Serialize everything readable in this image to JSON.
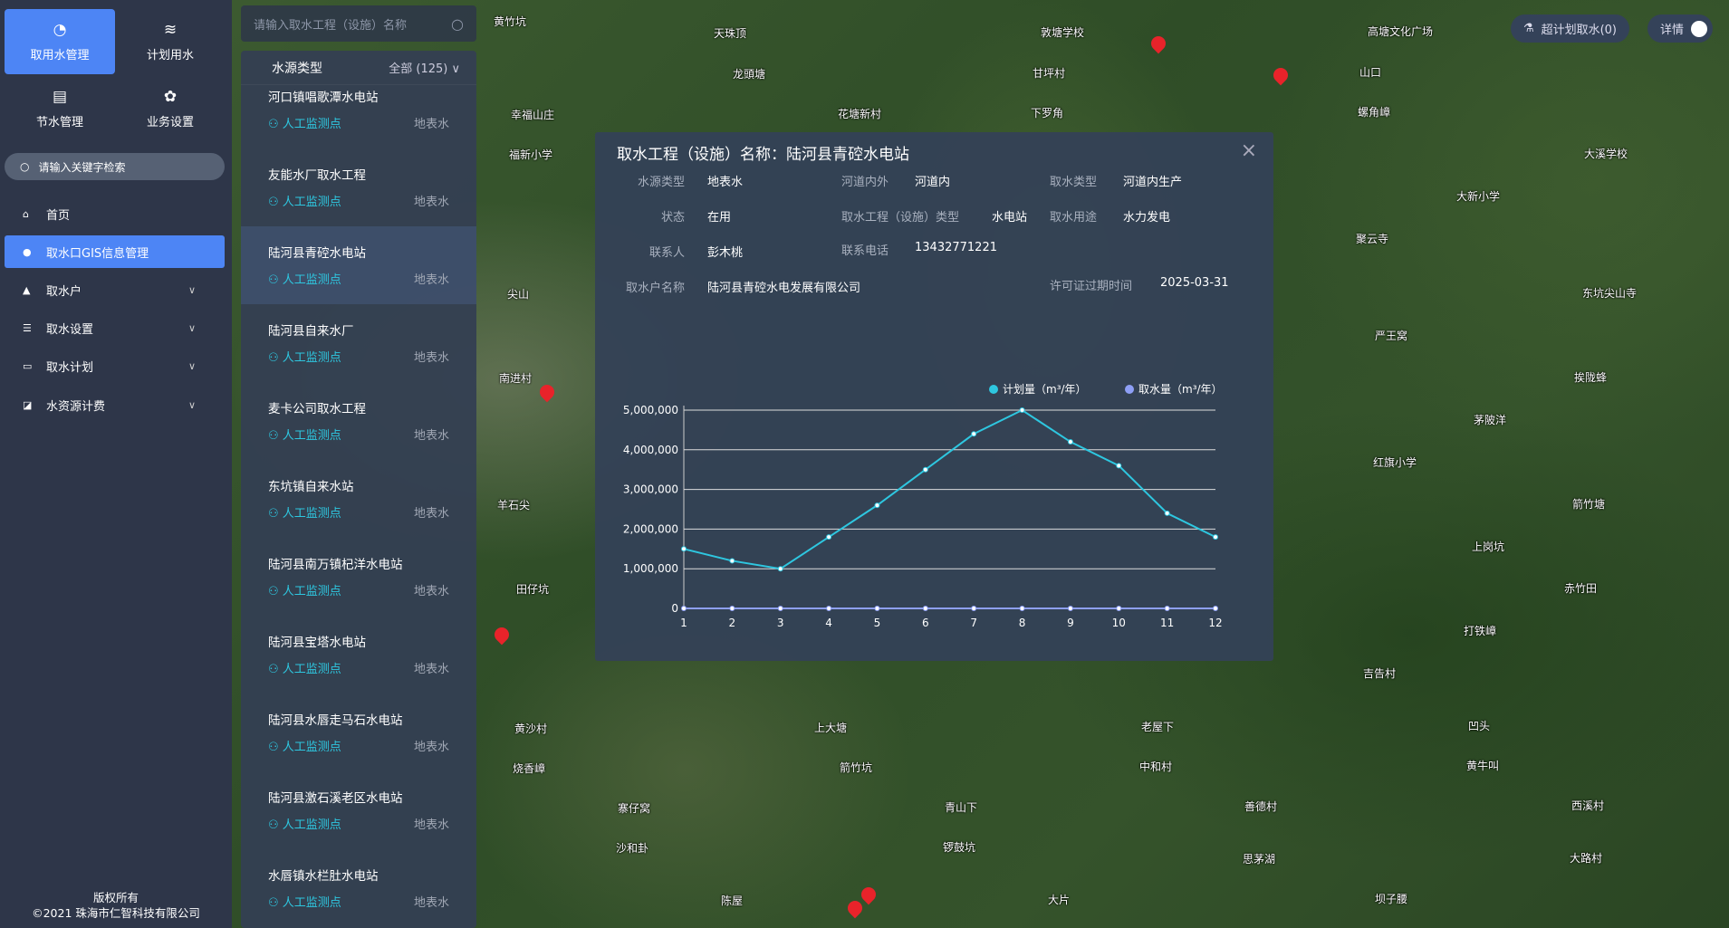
{
  "sidebar": {
    "tiles": [
      {
        "label": "取用水管理",
        "icon": "gauge-icon"
      },
      {
        "label": "计划用水",
        "icon": "waves-icon"
      },
      {
        "label": "节水管理",
        "icon": "document-icon"
      },
      {
        "label": "业务设置",
        "icon": "gear-icon"
      }
    ],
    "search_placeholder": "请输入关键字检索",
    "menu": [
      {
        "label": "首页",
        "icon": "home-icon"
      },
      {
        "label": "取水口GIS信息管理",
        "icon": "location-icon",
        "active": true
      },
      {
        "label": "取水户",
        "icon": "user-icon"
      },
      {
        "label": "取水设置",
        "icon": "database-icon"
      },
      {
        "label": "取水计划",
        "icon": "calendar-icon"
      },
      {
        "label": "水资源计费",
        "icon": "chart-icon"
      }
    ],
    "footer": {
      "line1": "版权所有",
      "line2": "©2021 珠海市仁智科技有限公司"
    }
  },
  "list": {
    "search_placeholder": "请输入取水工程（设施）名称",
    "filter_label": "水源类型",
    "filter_value": "全部 (125)",
    "items": [
      {
        "name": "河口镇唱歌潭水电站",
        "monitor": "人工监测点",
        "source": "地表水"
      },
      {
        "name": "友能水厂取水工程",
        "monitor": "人工监测点",
        "source": "地表水"
      },
      {
        "name": "陆河县青硿水电站",
        "monitor": "人工监测点",
        "source": "地表水",
        "selected": true
      },
      {
        "name": "陆河县自来水厂",
        "monitor": "人工监测点",
        "source": "地表水"
      },
      {
        "name": "麦卡公司取水工程",
        "monitor": "人工监测点",
        "source": "地表水"
      },
      {
        "name": "东坑镇自来水站",
        "monitor": "人工监测点",
        "source": "地表水"
      },
      {
        "name": "陆河县南万镇杞洋水电站",
        "monitor": "人工监测点",
        "source": "地表水"
      },
      {
        "name": "陆河县宝塔水电站",
        "monitor": "人工监测点",
        "source": "地表水"
      },
      {
        "name": "陆河县水唇走马石水电站",
        "monitor": "人工监测点",
        "source": "地表水"
      },
      {
        "name": "陆河县激石溪老区水电站",
        "monitor": "人工监测点",
        "source": "地表水"
      },
      {
        "name": "水唇镇水栏肚水电站",
        "monitor": "人工监测点",
        "source": "地表水"
      }
    ]
  },
  "popup": {
    "title": "取水工程（设施）名称：陆河县青硿水电站",
    "fields": {
      "source_type": {
        "label": "水源类型",
        "value": "地表水"
      },
      "river": {
        "label": "河道内外",
        "value": "河道内"
      },
      "intake_type": {
        "label": "取水类型",
        "value": "河道内生产"
      },
      "status": {
        "label": "状态",
        "value": "在用"
      },
      "facility_type": {
        "label": "取水工程（设施）类型",
        "value": "水电站"
      },
      "usage": {
        "label": "取水用途",
        "value": "水力发电"
      },
      "contact": {
        "label": "联系人",
        "value": "彭木桃"
      },
      "phone": {
        "label": "联系电话",
        "value": "13432771221"
      },
      "company": {
        "label": "取水户名称",
        "value": "陆河县青硿水电发展有限公司"
      },
      "license": {
        "label": "许可证过期时间",
        "value": "2025-03-31"
      }
    }
  },
  "chart_data": {
    "type": "line",
    "categories": [
      "1",
      "2",
      "3",
      "4",
      "5",
      "6",
      "7",
      "8",
      "9",
      "10",
      "11",
      "12"
    ],
    "ylim": [
      0,
      5000000
    ],
    "yticks": [
      "0",
      "1,000,000",
      "2,000,000",
      "3,000,000",
      "4,000,000",
      "5,000,000"
    ],
    "legend_position": "top-right",
    "grid": true,
    "series": [
      {
        "name": "计划量（m³/年）",
        "color": "#2ec7e0",
        "values": [
          1500000,
          1200000,
          1000000,
          1800000,
          2600000,
          3500000,
          4400000,
          5000000,
          4200000,
          3600000,
          2400000,
          1800000
        ]
      },
      {
        "name": "取水量（m³/年）",
        "color": "#8e9ff5",
        "values": [
          0,
          0,
          0,
          0,
          0,
          0,
          0,
          0,
          0,
          0,
          0,
          0
        ]
      }
    ]
  },
  "topbar": {
    "over_plan": "超计划取水(0)",
    "detail": "详情"
  },
  "map_labels": [
    "黄竹坑",
    "天珠顶",
    "敦塘学校",
    "高塘文化广场",
    "龙頭塘",
    "甘坪村",
    "山口",
    "幸福山庄",
    "花塘新村",
    "下罗角",
    "螺角嶂",
    "福新小学",
    "大溪学校",
    "大新小学",
    "聚云寺",
    "尖山",
    "东坑尖山寺",
    "严王窝",
    "南进村",
    "挨陇蜂",
    "茅陂洋",
    "红旗小学",
    "羊石尖",
    "箭竹塘",
    "上岗坑",
    "田仔坑",
    "赤竹田",
    "打铁嶂",
    "吉告村",
    "黄沙村",
    "上大塘",
    "老屋下",
    "凹头",
    "烧香嶂",
    "箭竹坑",
    "中和村",
    "黄牛叫",
    "寨仔窝",
    "青山下",
    "善德村",
    "西溪村",
    "沙和卦",
    "锣鼓坑",
    "思茅湖",
    "大路村",
    "陈屋",
    "大片",
    "坝子腰"
  ]
}
